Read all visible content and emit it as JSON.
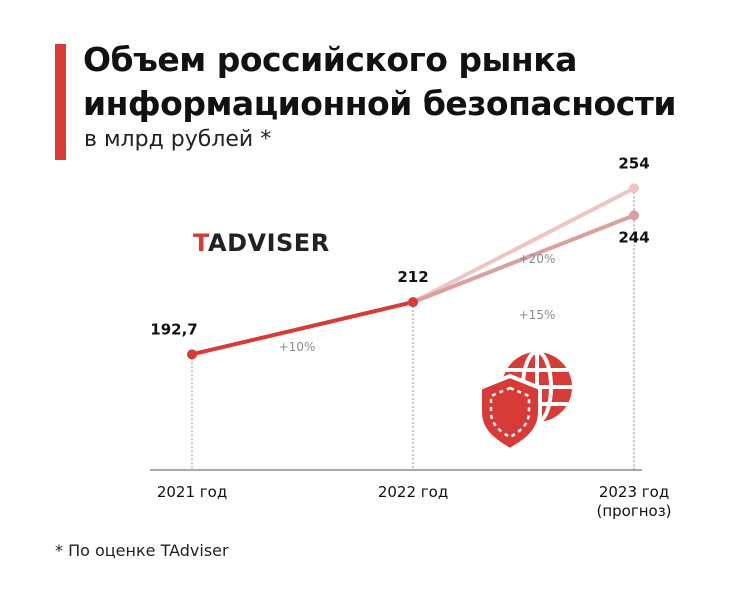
{
  "header": {
    "title": "Объем российского рынка информационной безопасности",
    "subtitle": "в млрд рублей *"
  },
  "logo": {
    "first_letter": "T",
    "rest": "ADVISER"
  },
  "footnote": "* По оценке TAdviser",
  "colors": {
    "accent": "#d63b37",
    "series_actual": "#d63b37",
    "series_plus20": "#ecc6c3",
    "series_plus15": "#d9a09c",
    "axis": "#555555",
    "icon": "#d63b37"
  },
  "icons": [
    "globe-icon",
    "shield-icon"
  ],
  "chart_data": {
    "type": "line",
    "categories": [
      "2021 год",
      "2022 год",
      "2023 год"
    ],
    "category_sublabels": [
      "",
      "",
      "(прогноз)"
    ],
    "ylim": [
      150,
      270
    ],
    "grid": false,
    "series": [
      {
        "values": [
          192.7,
          212,
          null
        ],
        "point_labels": [
          "192,7",
          "212",
          ""
        ]
      },
      {
        "values": [
          null,
          212,
          254
        ],
        "point_labels": [
          "",
          "",
          "254"
        ]
      },
      {
        "values": [
          null,
          212,
          244
        ],
        "point_labels": [
          "",
          "",
          "244"
        ]
      }
    ],
    "annotations": [
      "+10%",
      "+20%",
      "+15%"
    ]
  }
}
